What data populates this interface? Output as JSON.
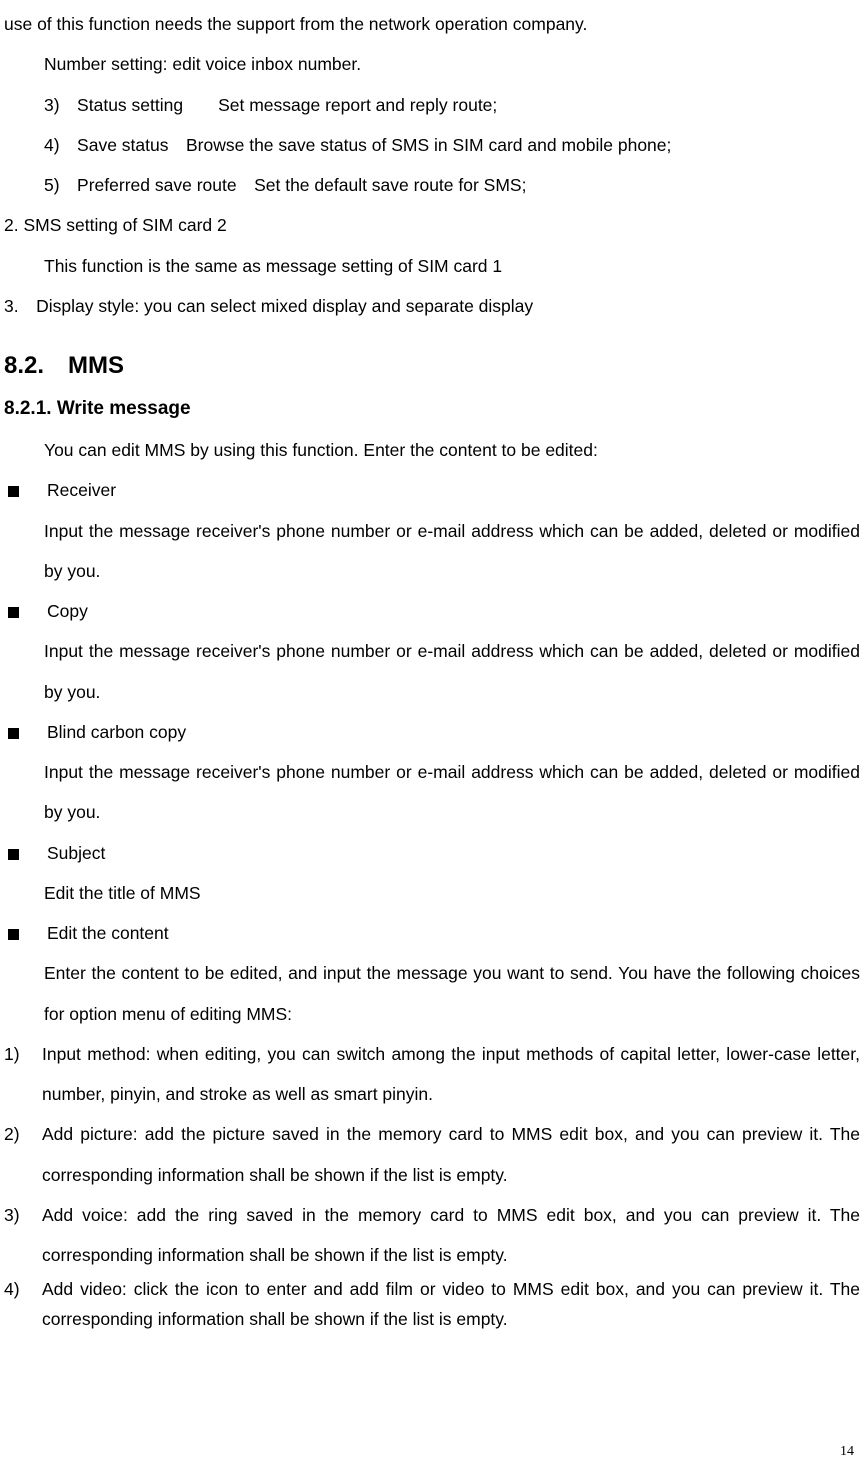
{
  "intro": {
    "line1": "use of this function needs the support from the network operation company.",
    "number_setting": "Number setting: edit voice inbox number.",
    "item3": "3) Status setting  Set message report and reply route;",
    "item4": "4) Save status Browse the save status of SMS in SIM card and mobile phone;",
    "item5": "5) Preferred save route Set the default save route for SMS;",
    "sim2_heading": "2. SMS setting of SIM card 2",
    "sim2_body": "This function is the same as message setting of SIM card 1",
    "display_style": "3. Display style: you can select mixed display and separate display"
  },
  "section": {
    "num_title": "8.2. MMS",
    "sub_num_title": "8.2.1. Write message",
    "intro": "You can edit MMS by using this function. Enter the content to be edited:"
  },
  "bullets": {
    "receiver": "Receiver",
    "receiver_body": "Input the message receiver's phone number or e-mail address which can be added, deleted or modified by you.",
    "copy": "Copy",
    "copy_body": "Input the message receiver's phone number or e-mail address which can be added, deleted or modified by you.",
    "bcc": "Blind carbon copy",
    "bcc_body": "Input the message receiver's phone number or e-mail address which can be added, deleted or modified by you.",
    "subject": "Subject",
    "subject_body": "Edit the title of MMS",
    "edit_content": "Edit the content",
    "edit_content_body": "Enter the content to be edited, and input the message you want to send. You have the following choices for option menu of editing MMS:"
  },
  "numbered": {
    "n1_label": "1)",
    "n1_body": "Input method:  when editing, you can switch among the input methods of capital letter, lower-case letter, number, pinyin, and stroke as well as smart pinyin.",
    "n2_label": "2)",
    "n2_body": "Add picture: add the picture saved in the memory card to MMS edit box, and you can preview it. The corresponding information shall be shown if the list is empty.",
    "n3_label": "3)",
    "n3_body": "Add voice: add the ring saved in the memory card to MMS edit box, and you can preview it. The corresponding information shall be shown if the list is empty.",
    "n4_label": "4)",
    "n4_body": "Add video: click the icon to enter and add film or video to MMS edit box, and you can preview it. The corresponding information shall be shown if the list is empty."
  },
  "page_number": "14"
}
